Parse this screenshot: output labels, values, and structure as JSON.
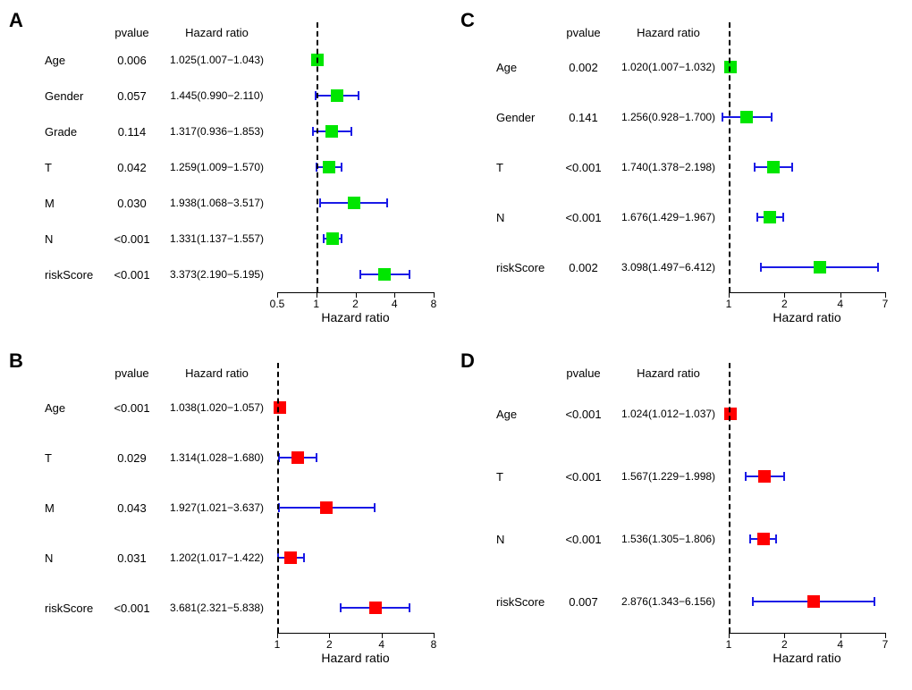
{
  "panels": {
    "A": {
      "label": "A",
      "headers": {
        "pvalue": "pvalue",
        "hr": "Hazard ratio"
      },
      "marker_color": "#00e600",
      "ci_color": "#1a1ae6",
      "xlim": [
        0.5,
        8
      ],
      "ticks": [
        0.5,
        1,
        2,
        4,
        8
      ],
      "axis_title": "Hazard ratio",
      "rows": [
        {
          "name": "Age",
          "pvalue": "0.006",
          "hr_text": "1.025(1.007−1.043)",
          "point": 1.025,
          "lo": 1.007,
          "hi": 1.043
        },
        {
          "name": "Gender",
          "pvalue": "0.057",
          "hr_text": "1.445(0.990−2.110)",
          "point": 1.445,
          "lo": 0.99,
          "hi": 2.11
        },
        {
          "name": "Grade",
          "pvalue": "0.114",
          "hr_text": "1.317(0.936−1.853)",
          "point": 1.317,
          "lo": 0.936,
          "hi": 1.853
        },
        {
          "name": "T",
          "pvalue": "0.042",
          "hr_text": "1.259(1.009−1.570)",
          "point": 1.259,
          "lo": 1.009,
          "hi": 1.57
        },
        {
          "name": "M",
          "pvalue": "0.030",
          "hr_text": "1.938(1.068−3.517)",
          "point": 1.938,
          "lo": 1.068,
          "hi": 3.517
        },
        {
          "name": "N",
          "pvalue": "<0.001",
          "hr_text": "1.331(1.137−1.557)",
          "point": 1.331,
          "lo": 1.137,
          "hi": 1.557
        },
        {
          "name": "riskScore",
          "pvalue": "<0.001",
          "hr_text": "3.373(2.190−5.195)",
          "point": 3.373,
          "lo": 2.19,
          "hi": 5.195
        }
      ]
    },
    "B": {
      "label": "B",
      "headers": {
        "pvalue": "pvalue",
        "hr": "Hazard ratio"
      },
      "marker_color": "#ff0000",
      "ci_color": "#1a1ae6",
      "xlim": [
        1,
        8
      ],
      "ticks": [
        1,
        2,
        4,
        8
      ],
      "axis_title": "Hazard ratio",
      "rows": [
        {
          "name": "Age",
          "pvalue": "<0.001",
          "hr_text": "1.038(1.020−1.057)",
          "point": 1.038,
          "lo": 1.02,
          "hi": 1.057
        },
        {
          "name": "T",
          "pvalue": "0.029",
          "hr_text": "1.314(1.028−1.680)",
          "point": 1.314,
          "lo": 1.028,
          "hi": 1.68
        },
        {
          "name": "M",
          "pvalue": "0.043",
          "hr_text": "1.927(1.021−3.637)",
          "point": 1.927,
          "lo": 1.021,
          "hi": 3.637
        },
        {
          "name": "N",
          "pvalue": "0.031",
          "hr_text": "1.202(1.017−1.422)",
          "point": 1.202,
          "lo": 1.017,
          "hi": 1.422
        },
        {
          "name": "riskScore",
          "pvalue": "<0.001",
          "hr_text": "3.681(2.321−5.838)",
          "point": 3.681,
          "lo": 2.321,
          "hi": 5.838
        }
      ]
    },
    "C": {
      "label": "C",
      "headers": {
        "pvalue": "pvalue",
        "hr": "Hazard ratio"
      },
      "marker_color": "#00e600",
      "ci_color": "#1a1ae6",
      "xlim": [
        1,
        7
      ],
      "ticks": [
        1,
        2,
        4,
        7
      ],
      "axis_title": "Hazard ratio",
      "rows": [
        {
          "name": "Age",
          "pvalue": "0.002",
          "hr_text": "1.020(1.007−1.032)",
          "point": 1.02,
          "lo": 1.007,
          "hi": 1.032
        },
        {
          "name": "Gender",
          "pvalue": "0.141",
          "hr_text": "1.256(0.928−1.700)",
          "point": 1.256,
          "lo": 0.928,
          "hi": 1.7
        },
        {
          "name": "T",
          "pvalue": "<0.001",
          "hr_text": "1.740(1.378−2.198)",
          "point": 1.74,
          "lo": 1.378,
          "hi": 2.198
        },
        {
          "name": "N",
          "pvalue": "<0.001",
          "hr_text": "1.676(1.429−1.967)",
          "point": 1.676,
          "lo": 1.429,
          "hi": 1.967
        },
        {
          "name": "riskScore",
          "pvalue": "0.002",
          "hr_text": "3.098(1.497−6.412)",
          "point": 3.098,
          "lo": 1.497,
          "hi": 6.412
        }
      ]
    },
    "D": {
      "label": "D",
      "headers": {
        "pvalue": "pvalue",
        "hr": "Hazard ratio"
      },
      "marker_color": "#ff0000",
      "ci_color": "#1a1ae6",
      "xlim": [
        1,
        7
      ],
      "ticks": [
        1,
        2,
        4,
        7
      ],
      "axis_title": "Hazard ratio",
      "rows": [
        {
          "name": "Age",
          "pvalue": "<0.001",
          "hr_text": "1.024(1.012−1.037)",
          "point": 1.024,
          "lo": 1.012,
          "hi": 1.037
        },
        {
          "name": "T",
          "pvalue": "<0.001",
          "hr_text": "1.567(1.229−1.998)",
          "point": 1.567,
          "lo": 1.229,
          "hi": 1.998
        },
        {
          "name": "N",
          "pvalue": "<0.001",
          "hr_text": "1.536(1.305−1.806)",
          "point": 1.536,
          "lo": 1.305,
          "hi": 1.806
        },
        {
          "name": "riskScore",
          "pvalue": "0.007",
          "hr_text": "2.876(1.343−6.156)",
          "point": 2.876,
          "lo": 1.343,
          "hi": 6.156
        }
      ]
    }
  },
  "layout": {
    "background": "#ffffff",
    "row_text_color": "#000000",
    "dashed_line_color": "#000000"
  }
}
